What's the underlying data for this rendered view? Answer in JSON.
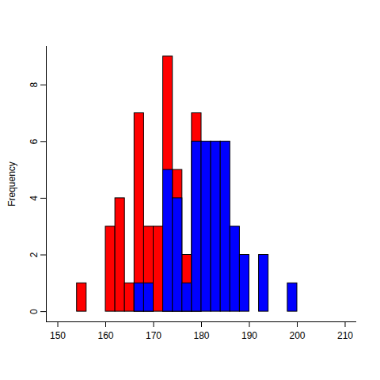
{
  "chart_data": {
    "type": "histogram",
    "y_label": "Frequency",
    "bins": [
      150,
      152,
      154,
      156,
      158,
      160,
      162,
      164,
      166,
      168,
      170,
      172,
      174,
      176,
      178,
      180,
      182,
      184,
      186,
      188,
      190,
      192,
      194,
      196,
      198,
      200,
      202,
      204,
      206,
      208,
      210
    ],
    "series": [
      {
        "color": "red",
        "values": [
          0,
          0,
          1,
          0,
          0,
          3,
          4,
          1,
          7,
          3,
          3,
          9,
          5,
          2,
          7,
          0,
          0,
          0,
          0,
          0,
          0,
          0,
          0,
          0,
          0,
          0,
          0,
          0,
          0,
          0
        ]
      },
      {
        "color": "blue",
        "values": [
          0,
          0,
          0,
          0,
          0,
          0,
          0,
          0,
          1,
          1,
          0,
          5,
          4,
          1,
          6,
          6,
          6,
          6,
          3,
          2,
          0,
          2,
          0,
          0,
          1,
          0,
          0,
          0,
          0,
          0
        ]
      }
    ],
    "xlim": [
      147.6,
      212.4
    ],
    "xticks": [
      150,
      160,
      170,
      180,
      190,
      200,
      210
    ],
    "ylim": [
      -0.36,
      9.36
    ],
    "yticks": [
      0,
      2,
      4,
      6,
      8
    ],
    "grid": false
  }
}
